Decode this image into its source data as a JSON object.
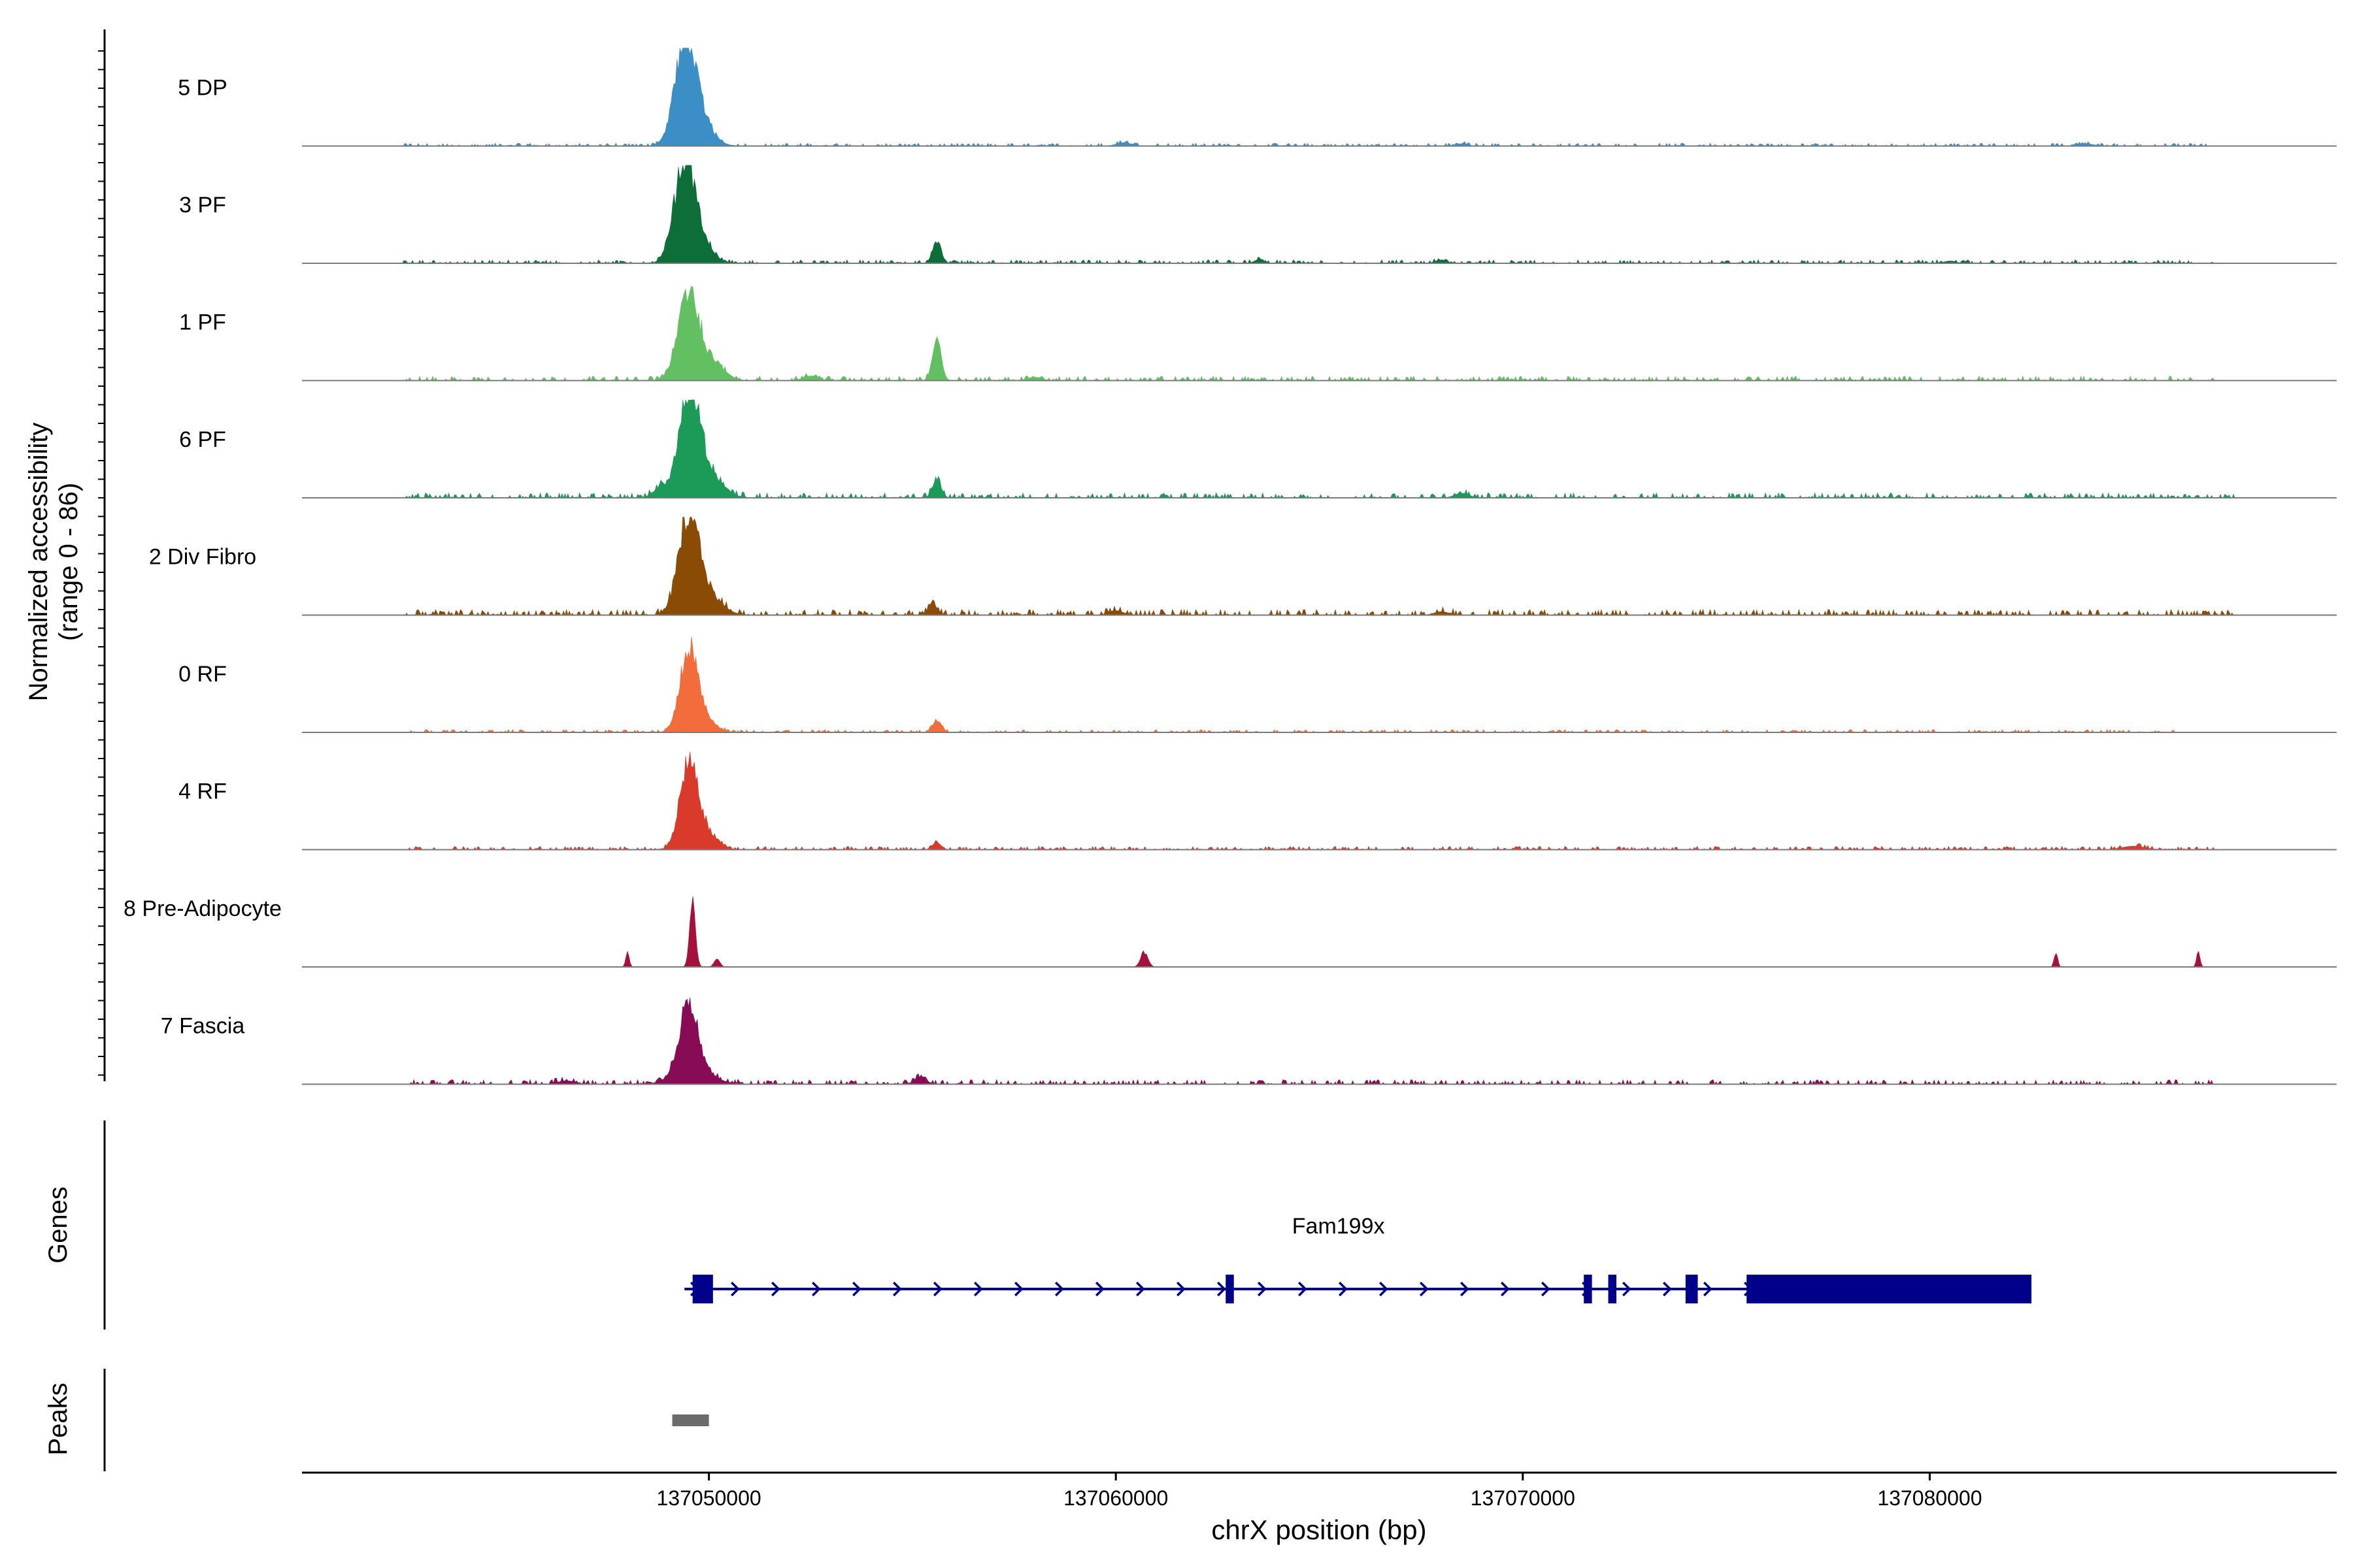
{
  "chart_data": {
    "type": "area",
    "title": "",
    "ylabel_line1": "Normalized accessibility",
    "ylabel_line2": "(range 0 - 86)",
    "ylim": [
      0,
      86
    ],
    "xlabel": "chrX position (bp)",
    "xlim": [
      137040000,
      137090000
    ],
    "xticks": [
      {
        "value": 137050000,
        "label": "137050000"
      },
      {
        "value": 137060000,
        "label": "137060000"
      },
      {
        "value": 137070000,
        "label": "137070000"
      },
      {
        "value": 137080000,
        "label": "137080000"
      }
    ],
    "series": [
      {
        "name": "5 DP",
        "color": "#3b8ec6",
        "peaks": [
          [
            137049400,
            80,
            700
          ],
          [
            137049700,
            28,
            900
          ],
          [
            137060200,
            3,
            500
          ],
          [
            137068500,
            2,
            400
          ],
          [
            137083800,
            2,
            600
          ]
        ],
        "noise": 2.5,
        "noise_range": [
          137042500,
          137087000
        ]
      },
      {
        "name": "3 PF",
        "color": "#0e6e3a",
        "peaks": [
          [
            137049400,
            80,
            700
          ],
          [
            137049700,
            20,
            900
          ],
          [
            137055600,
            18,
            300
          ],
          [
            137063500,
            3,
            300
          ],
          [
            137068000,
            3,
            400
          ],
          [
            137080500,
            2,
            400
          ]
        ],
        "noise": 3,
        "noise_range": [
          137042500,
          137087000
        ]
      },
      {
        "name": "1 PF",
        "color": "#62c062",
        "peaks": [
          [
            137049500,
            80,
            700
          ],
          [
            137050100,
            15,
            800
          ],
          [
            137055600,
            37,
            300
          ],
          [
            137052500,
            4,
            500
          ],
          [
            137058000,
            3,
            500
          ]
        ],
        "noise": 4,
        "noise_range": [
          137042500,
          137087000
        ]
      },
      {
        "name": "6 PF",
        "color": "#1b9a58",
        "peaks": [
          [
            137049500,
            82,
            700
          ],
          [
            137049900,
            25,
            1000
          ],
          [
            137055600,
            15,
            300
          ],
          [
            137048800,
            8,
            500
          ],
          [
            137068500,
            4,
            500
          ]
        ],
        "noise": 4.5,
        "noise_range": [
          137042500,
          137087500
        ]
      },
      {
        "name": "2 Div Fibro",
        "color": "#8a4b05",
        "peaks": [
          [
            137049500,
            78,
            700
          ],
          [
            137049900,
            20,
            1000
          ],
          [
            137055500,
            10,
            300
          ],
          [
            137060000,
            4,
            500
          ],
          [
            137068000,
            3,
            500
          ]
        ],
        "noise": 5,
        "noise_range": [
          137042500,
          137087500
        ]
      },
      {
        "name": "0 RF",
        "color": "#f26c3c",
        "peaks": [
          [
            137049500,
            66,
            600
          ],
          [
            137049800,
            15,
            800
          ],
          [
            137055600,
            10,
            300
          ]
        ],
        "noise": 2.5,
        "noise_range": [
          137042500,
          137086000
        ]
      },
      {
        "name": "4 RF",
        "color": "#d93a2a",
        "peaks": [
          [
            137049500,
            75,
            600
          ],
          [
            137049900,
            15,
            800
          ],
          [
            137055600,
            6,
            300
          ],
          [
            137085000,
            3,
            800
          ]
        ],
        "noise": 3,
        "noise_range": [
          137042500,
          137087000
        ]
      },
      {
        "name": "8 Pre-Adipocyte",
        "color": "#a5113a",
        "peaks": [
          [
            137048000,
            13,
            120
          ],
          [
            137049600,
            58,
            200
          ],
          [
            137050200,
            7,
            200
          ],
          [
            137060700,
            13,
            250
          ],
          [
            137083100,
            14,
            120
          ],
          [
            137086600,
            13,
            120
          ]
        ],
        "noise": 0,
        "noise_range": [
          137042500,
          137087000
        ]
      },
      {
        "name": "7 Fascia",
        "color": "#870c55",
        "peaks": [
          [
            137049500,
            60,
            600
          ],
          [
            137049600,
            15,
            1200
          ],
          [
            137055200,
            6,
            400
          ],
          [
            137046500,
            3,
            600
          ]
        ],
        "noise": 4,
        "noise_range": [
          137042500,
          137087000
        ]
      }
    ],
    "genes_label": "Genes",
    "gene": {
      "name": "Fam199x",
      "strand": "+",
      "color": "#00008b",
      "start": 137049400,
      "end": 137082500,
      "exons": [
        [
          137049600,
          137050100
        ],
        [
          137062700,
          137062900
        ],
        [
          137071500,
          137071700
        ],
        [
          137072100,
          137072300
        ],
        [
          137074000,
          137074300
        ],
        [
          137075500,
          137082500
        ]
      ]
    },
    "peaks_label": "Peaks",
    "peak_regions": [
      {
        "start": 137049100,
        "end": 137050000,
        "color": "#6b6b6b"
      }
    ]
  }
}
